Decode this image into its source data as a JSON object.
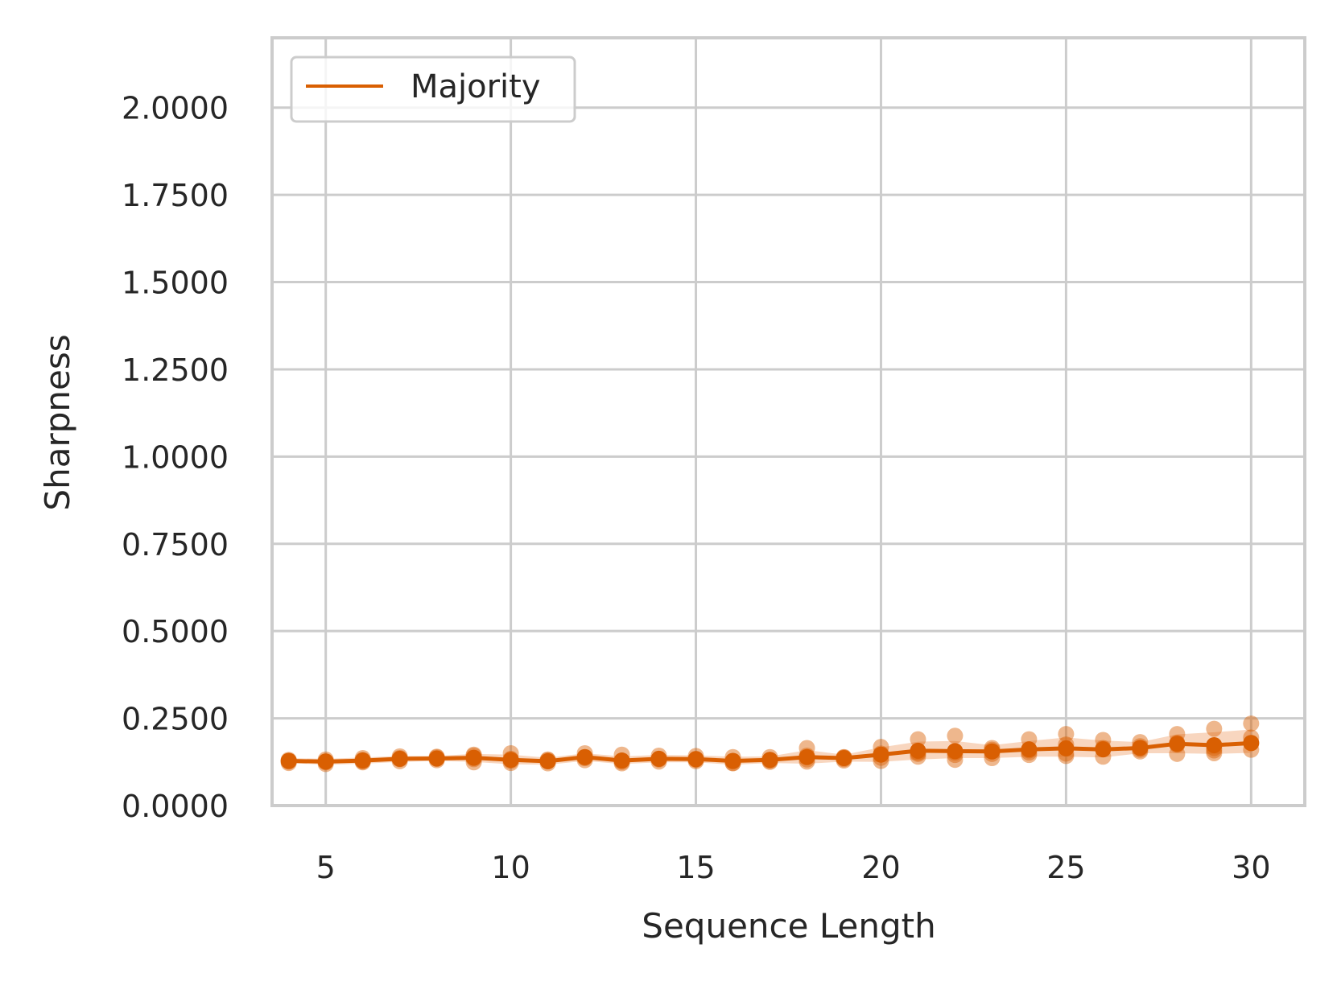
{
  "chart_data": {
    "type": "line",
    "xlabel": "Sequence Length",
    "ylabel": "Sharpness",
    "xlim": [
      3.55,
      31.45
    ],
    "ylim": [
      0.0,
      2.2
    ],
    "xticks": [
      5,
      10,
      15,
      20,
      25,
      30
    ],
    "xtick_labels": [
      "5",
      "10",
      "15",
      "20",
      "25",
      "30"
    ],
    "yticks": [
      0.0,
      0.25,
      0.5,
      0.75,
      1.0,
      1.25,
      1.5,
      1.75,
      2.0
    ],
    "ytick_labels": [
      "0.0000",
      "0.2500",
      "0.5000",
      "0.7500",
      "1.0000",
      "1.2500",
      "1.5000",
      "1.7500",
      "2.0000"
    ],
    "grid": true,
    "legend": {
      "placement": "top-left",
      "entries": [
        "Majority"
      ]
    },
    "colors": {
      "series": "#d95f02",
      "band": "#f2b48a",
      "grid": "#cccccc",
      "frame": "#cccccc"
    },
    "series": [
      {
        "name": "Majority",
        "x": [
          4,
          5,
          6,
          7,
          8,
          9,
          10,
          11,
          12,
          13,
          14,
          15,
          16,
          17,
          18,
          19,
          20,
          21,
          22,
          23,
          24,
          25,
          26,
          27,
          28,
          29,
          30
        ],
        "mean": [
          0.128,
          0.126,
          0.129,
          0.134,
          0.135,
          0.137,
          0.131,
          0.127,
          0.139,
          0.129,
          0.134,
          0.133,
          0.128,
          0.131,
          0.139,
          0.136,
          0.146,
          0.157,
          0.156,
          0.155,
          0.161,
          0.164,
          0.161,
          0.165,
          0.177,
          0.173,
          0.179
        ],
        "ci_low": [
          0.122,
          0.117,
          0.12,
          0.125,
          0.128,
          0.125,
          0.118,
          0.117,
          0.128,
          0.119,
          0.124,
          0.124,
          0.117,
          0.122,
          0.12,
          0.126,
          0.125,
          0.132,
          0.136,
          0.136,
          0.14,
          0.14,
          0.138,
          0.15,
          0.15,
          0.148,
          0.151
        ],
        "ci_high": [
          0.136,
          0.134,
          0.138,
          0.142,
          0.142,
          0.148,
          0.146,
          0.137,
          0.15,
          0.141,
          0.145,
          0.144,
          0.14,
          0.141,
          0.159,
          0.146,
          0.167,
          0.183,
          0.185,
          0.173,
          0.185,
          0.195,
          0.186,
          0.182,
          0.204,
          0.21,
          0.218
        ],
        "runs": [
          [
            0.126,
            0.131,
            0.122,
            0.128
          ],
          [
            0.127,
            0.132,
            0.119,
            0.124
          ],
          [
            0.131,
            0.124,
            0.126,
            0.136
          ],
          [
            0.133,
            0.141,
            0.127,
            0.136
          ],
          [
            0.134,
            0.13,
            0.14,
            0.138
          ],
          [
            0.146,
            0.124,
            0.133,
            0.143
          ],
          [
            0.15,
            0.122,
            0.128,
            0.134
          ],
          [
            0.13,
            0.121,
            0.127,
            0.132
          ],
          [
            0.15,
            0.13,
            0.138,
            0.136
          ],
          [
            0.146,
            0.125,
            0.129,
            0.121
          ],
          [
            0.143,
            0.126,
            0.134,
            0.132
          ],
          [
            0.142,
            0.127,
            0.131,
            0.134
          ],
          [
            0.139,
            0.122,
            0.121,
            0.127
          ],
          [
            0.139,
            0.125,
            0.131,
            0.128
          ],
          [
            0.165,
            0.126,
            0.132,
            0.143
          ],
          [
            0.138,
            0.129,
            0.133,
            0.139
          ],
          [
            0.168,
            0.128,
            0.137,
            0.149
          ],
          [
            0.19,
            0.14,
            0.148,
            0.152
          ],
          [
            0.2,
            0.145,
            0.152,
            0.131
          ],
          [
            0.165,
            0.136,
            0.148,
            0.16
          ],
          [
            0.19,
            0.145,
            0.152,
            0.158
          ],
          [
            0.205,
            0.149,
            0.175,
            0.142
          ],
          [
            0.188,
            0.14,
            0.162,
            0.165
          ],
          [
            0.182,
            0.155,
            0.16,
            0.17
          ],
          [
            0.205,
            0.148,
            0.18,
            0.174
          ],
          [
            0.22,
            0.15,
            0.165,
            0.158
          ],
          [
            0.235,
            0.16,
            0.195,
            0.18
          ]
        ]
      }
    ]
  }
}
